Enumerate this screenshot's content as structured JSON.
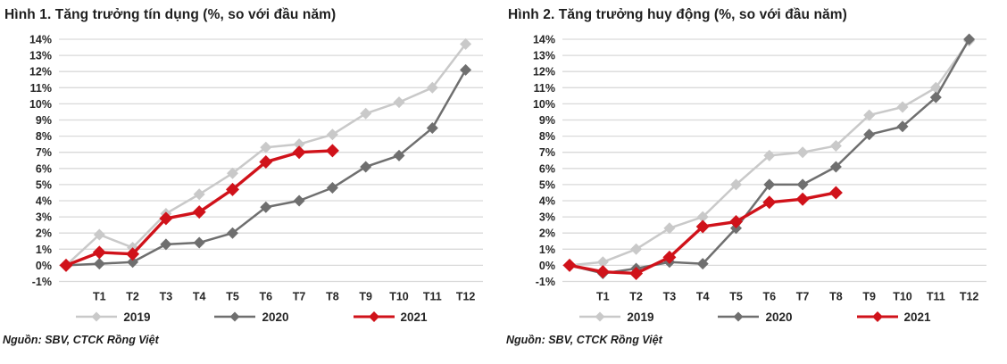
{
  "accent_colors": {
    "series_2019": "#c9c9c9",
    "series_2020": "#6f6f6f",
    "series_2021": "#d0121a",
    "gridline": "#d9d9d9",
    "text": "#262626"
  },
  "chart_data": [
    {
      "type": "line",
      "title": "Hình 1. Tăng trưởng tín dụng (%, so với đầu năm)",
      "source": "Nguồn: SBV, CTCK Rồng Việt",
      "x_tick_labels": [
        "T1",
        "T2",
        "T3",
        "T4",
        "T5",
        "T6",
        "T7",
        "T8",
        "T9",
        "T10",
        "T11",
        "T12"
      ],
      "y_tick_labels": [
        "14%",
        "13%",
        "12%",
        "11%",
        "10%",
        "9%",
        "8%",
        "7%",
        "6%",
        "5%",
        "4%",
        "3%",
        "2%",
        "1%",
        "0%",
        "-1%"
      ],
      "ylim": [
        -1,
        14
      ],
      "grid": "horizontal",
      "legend_position": "bottom",
      "series": [
        {
          "name": "2019",
          "color": "#c9c9c9",
          "start": 0,
          "values": [
            1.9,
            1.1,
            3.2,
            4.4,
            5.7,
            7.3,
            7.5,
            8.1,
            9.4,
            10.1,
            11.0,
            13.7
          ]
        },
        {
          "name": "2020",
          "color": "#6f6f6f",
          "start": 0,
          "values": [
            0.1,
            0.2,
            1.3,
            1.4,
            2.0,
            3.6,
            4.0,
            4.8,
            6.1,
            6.8,
            8.5,
            12.1
          ]
        },
        {
          "name": "2021",
          "color": "#d0121a",
          "start": 0,
          "values": [
            0.8,
            0.7,
            2.9,
            3.3,
            4.7,
            6.4,
            7.0,
            7.1
          ]
        }
      ]
    },
    {
      "type": "line",
      "title": "Hình 2. Tăng trưởng huy động (%, so với đầu năm)",
      "source": "Nguồn: SBV, CTCK Rồng Việt",
      "x_tick_labels": [
        "T1",
        "T2",
        "T3",
        "T4",
        "T5",
        "T6",
        "T7",
        "T8",
        "T9",
        "T10",
        "T11",
        "T12"
      ],
      "y_tick_labels": [
        "14%",
        "13%",
        "12%",
        "11%",
        "10%",
        "9%",
        "8%",
        "7%",
        "6%",
        "5%",
        "4%",
        "3%",
        "2%",
        "1%",
        "0%",
        "-1%"
      ],
      "ylim": [
        -1,
        14
      ],
      "grid": "horizontal",
      "legend_position": "bottom",
      "series": [
        {
          "name": "2019",
          "color": "#c9c9c9",
          "start": 0,
          "values": [
            0.2,
            1.0,
            2.3,
            3.0,
            5.0,
            6.8,
            7.0,
            7.4,
            9.3,
            9.8,
            11.0,
            13.9
          ]
        },
        {
          "name": "2020",
          "color": "#6f6f6f",
          "start": 0,
          "values": [
            -0.5,
            -0.2,
            0.2,
            0.1,
            2.3,
            5.0,
            5.0,
            6.1,
            8.1,
            8.6,
            10.4,
            14.0
          ]
        },
        {
          "name": "2021",
          "color": "#d0121a",
          "start": 0,
          "values": [
            -0.4,
            -0.5,
            0.5,
            2.4,
            2.7,
            3.9,
            4.1,
            4.5
          ]
        }
      ]
    }
  ]
}
